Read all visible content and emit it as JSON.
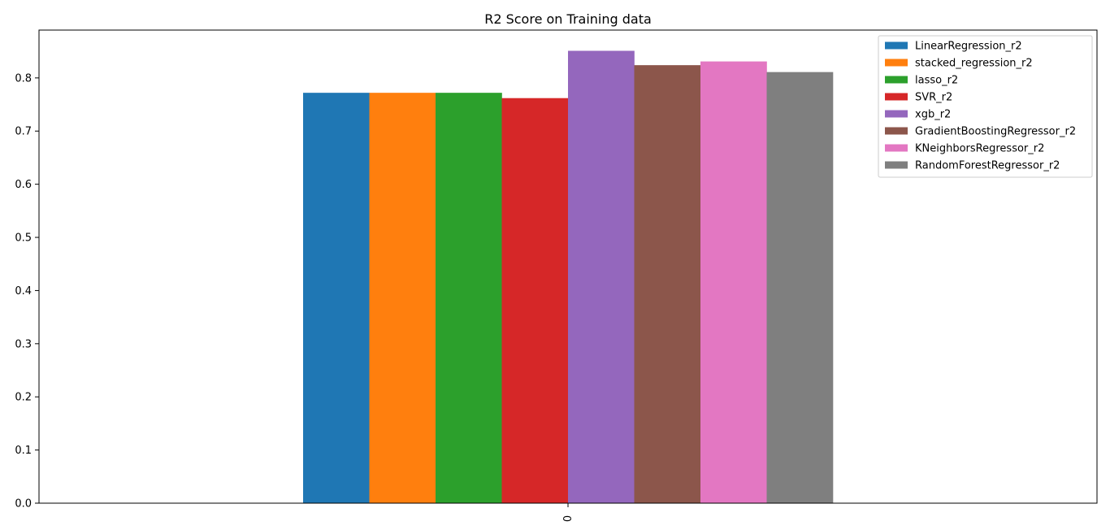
{
  "chart_data": {
    "type": "bar",
    "title": "R2 Score on Training data",
    "xlabel": "",
    "ylabel": "",
    "categories": [
      "0"
    ],
    "ylim": [
      0,
      0.89
    ],
    "yticks": [
      "0.0",
      "0.1",
      "0.2",
      "0.3",
      "0.4",
      "0.5",
      "0.6",
      "0.7",
      "0.8"
    ],
    "grid": false,
    "legend_position": "top-right",
    "series": [
      {
        "name": "LinearRegression_r2",
        "color": "#1f77b4",
        "values": [
          0.772
        ]
      },
      {
        "name": "stacked_regression_r2",
        "color": "#ff7f0e",
        "values": [
          0.772
        ]
      },
      {
        "name": "lasso_r2",
        "color": "#2ca02c",
        "values": [
          0.772
        ]
      },
      {
        "name": "SVR_r2",
        "color": "#d62728",
        "values": [
          0.762
        ]
      },
      {
        "name": "xgb_r2",
        "color": "#9467bd",
        "values": [
          0.851
        ]
      },
      {
        "name": "GradientBoostingRegressor_r2",
        "color": "#8c564b",
        "values": [
          0.824
        ]
      },
      {
        "name": "KNeighborsRegressor_r2",
        "color": "#e377c2",
        "values": [
          0.831
        ]
      },
      {
        "name": "RandomForestRegressor_r2",
        "color": "#7f7f7f",
        "values": [
          0.811
        ]
      }
    ]
  }
}
